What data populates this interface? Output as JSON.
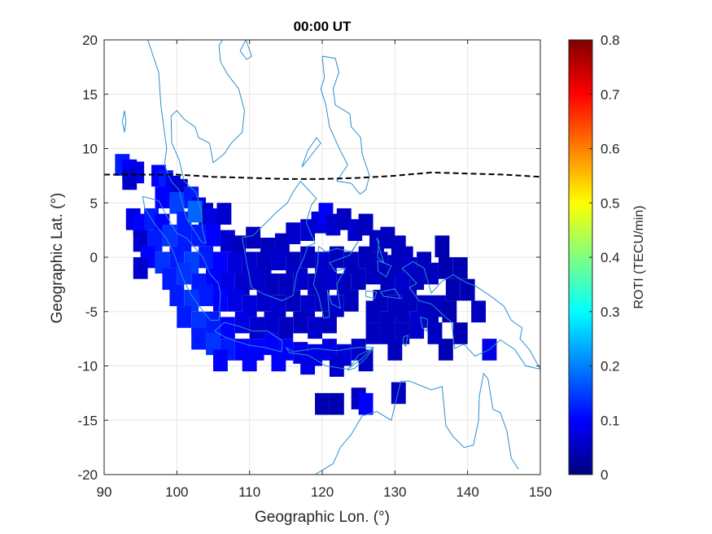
{
  "chart_data": {
    "type": "heatmap",
    "title": "00:00 UT",
    "xlabel": "Geographic Lon. (°)",
    "ylabel": "Geographic Lat. (°)",
    "colorbar_label": "ROTI (TECU/min)",
    "colormap": "jet",
    "xlim": [
      90,
      150
    ],
    "ylim": [
      -20,
      20
    ],
    "clim": [
      0,
      0.8
    ],
    "x_ticks": [
      "90",
      "100",
      "110",
      "120",
      "130",
      "140",
      "150"
    ],
    "y_ticks": [
      "20",
      "15",
      "10",
      "5",
      "0",
      "-5",
      "-10",
      "-15",
      "-20"
    ],
    "colorbar_ticks": [
      "0.8",
      "0.7",
      "0.6",
      "0.5",
      "0.4",
      "0.3",
      "0.2",
      "0.1",
      "0"
    ],
    "grid": true,
    "colors": {
      "coastline": "#2a8fd0",
      "equator_line": "#000000",
      "axes": "#262626",
      "grid": "#e6e6e6"
    },
    "magnetic_equator": {
      "style": "dashed",
      "lon": [
        90,
        95,
        100,
        105,
        110,
        115,
        120,
        125,
        130,
        135,
        140,
        145,
        150
      ],
      "lat": [
        7.6,
        7.6,
        7.6,
        7.4,
        7.3,
        7.2,
        7.2,
        7.3,
        7.5,
        7.8,
        7.7,
        7.6,
        7.4
      ]
    },
    "roti_cells": [
      [
        92.5,
        8.5,
        0.12
      ],
      [
        93.5,
        8.0,
        0.1
      ],
      [
        94.5,
        7.8,
        0.08
      ],
      [
        93.5,
        7.2,
        0.06
      ],
      [
        97.5,
        7.5,
        0.1
      ],
      [
        98.5,
        7.0,
        0.12
      ],
      [
        99.5,
        6.5,
        0.08
      ],
      [
        100.5,
        6.2,
        0.06
      ],
      [
        98,
        5.5,
        0.1
      ],
      [
        100,
        5.0,
        0.15
      ],
      [
        102,
        5.5,
        0.12
      ],
      [
        103,
        4.5,
        0.08
      ],
      [
        104,
        4.0,
        0.06
      ],
      [
        94,
        3.5,
        0.08
      ],
      [
        95,
        3.0,
        0.1
      ],
      [
        96.5,
        3.5,
        0.12
      ],
      [
        98,
        3.0,
        0.1
      ],
      [
        101,
        3.2,
        0.12
      ],
      [
        102.5,
        4.2,
        0.18
      ],
      [
        105,
        3.5,
        0.08
      ],
      [
        106.5,
        4.0,
        0.06
      ],
      [
        95,
        1.5,
        0.06
      ],
      [
        97,
        1.5,
        0.12
      ],
      [
        99,
        2.0,
        0.14
      ],
      [
        101,
        1.5,
        0.12
      ],
      [
        103,
        2.0,
        0.12
      ],
      [
        105,
        2.0,
        0.1
      ],
      [
        107,
        1.5,
        0.06
      ],
      [
        108.5,
        1.0,
        0.05
      ],
      [
        110.5,
        1.8,
        0.05
      ],
      [
        112.5,
        0.8,
        0.05
      ],
      [
        114.5,
        1.2,
        0.05
      ],
      [
        116,
        2.2,
        0.06
      ],
      [
        118,
        2.5,
        0.06
      ],
      [
        119.5,
        3.2,
        0.07
      ],
      [
        120.5,
        4.0,
        0.1
      ],
      [
        121.5,
        3.0,
        0.06
      ],
      [
        123,
        3.5,
        0.05
      ],
      [
        124.5,
        2.5,
        0.06
      ],
      [
        126,
        3.0,
        0.05
      ],
      [
        127.5,
        1.5,
        0.05
      ],
      [
        129,
        1.8,
        0.05
      ],
      [
        130.5,
        1.0,
        0.05
      ],
      [
        131.5,
        0.0,
        0.05
      ],
      [
        96,
        0.0,
        0.1
      ],
      [
        98,
        -0.5,
        0.14
      ],
      [
        100,
        0.0,
        0.12
      ],
      [
        102,
        -0.5,
        0.15
      ],
      [
        104,
        0.0,
        0.12
      ],
      [
        106,
        -0.5,
        0.1
      ],
      [
        108,
        -0.5,
        0.07
      ],
      [
        110,
        -0.5,
        0.06
      ],
      [
        112,
        -0.5,
        0.05
      ],
      [
        114,
        -0.2,
        0.06
      ],
      [
        116,
        -0.5,
        0.05
      ],
      [
        118,
        0.0,
        0.05
      ],
      [
        120,
        -0.5,
        0.06
      ],
      [
        122,
        0.0,
        0.05
      ],
      [
        124,
        -0.5,
        0.05
      ],
      [
        126,
        0.0,
        0.05
      ],
      [
        128,
        -0.5,
        0.05
      ],
      [
        130,
        -0.8,
        0.05
      ],
      [
        132,
        -1.0,
        0.06
      ],
      [
        134,
        -0.5,
        0.05
      ],
      [
        136.5,
        1.0,
        0.04
      ],
      [
        95,
        -1.0,
        0.06
      ],
      [
        99,
        -2.0,
        0.12
      ],
      [
        101,
        -1.5,
        0.14
      ],
      [
        103,
        -2.5,
        0.12
      ],
      [
        105,
        -2.0,
        0.1
      ],
      [
        107,
        -2.5,
        0.08
      ],
      [
        109,
        -2.5,
        0.06
      ],
      [
        111,
        -2.0,
        0.06
      ],
      [
        113,
        -2.5,
        0.05
      ],
      [
        115,
        -2.5,
        0.05
      ],
      [
        117,
        -2.0,
        0.06
      ],
      [
        119,
        -2.5,
        0.05
      ],
      [
        121,
        -2.0,
        0.06
      ],
      [
        123,
        -2.5,
        0.05
      ],
      [
        125,
        -2.0,
        0.05
      ],
      [
        127,
        -1.5,
        0.05
      ],
      [
        129,
        -2.5,
        0.05
      ],
      [
        131,
        -2.5,
        0.06
      ],
      [
        133,
        -2.0,
        0.05
      ],
      [
        135,
        -1.5,
        0.05
      ],
      [
        137,
        -1.0,
        0.04
      ],
      [
        139,
        -1.0,
        0.04
      ],
      [
        100,
        -3.5,
        0.12
      ],
      [
        102,
        -4.0,
        0.14
      ],
      [
        104,
        -3.5,
        0.12
      ],
      [
        106,
        -4.0,
        0.1
      ],
      [
        108,
        -4.0,
        0.08
      ],
      [
        110,
        -4.5,
        0.07
      ],
      [
        112,
        -4.0,
        0.06
      ],
      [
        114,
        -4.5,
        0.06
      ],
      [
        116,
        -4.0,
        0.05
      ],
      [
        118,
        -4.5,
        0.06
      ],
      [
        120,
        -4.0,
        0.05
      ],
      [
        122,
        -4.5,
        0.06
      ],
      [
        124,
        -4.0,
        0.05
      ],
      [
        128,
        -4.0,
        0.05
      ],
      [
        130,
        -4.5,
        0.05
      ],
      [
        132,
        -4.0,
        0.05
      ],
      [
        134,
        -4.5,
        0.05
      ],
      [
        136,
        -4.5,
        0.05
      ],
      [
        138,
        -3.0,
        0.04
      ],
      [
        140,
        -3.0,
        0.04
      ],
      [
        101,
        -5.5,
        0.12
      ],
      [
        103,
        -6.0,
        0.14
      ],
      [
        105,
        -6.0,
        0.12
      ],
      [
        107,
        -6.5,
        0.1
      ],
      [
        109,
        -6.0,
        0.08
      ],
      [
        111,
        -6.5,
        0.06
      ],
      [
        113,
        -6.0,
        0.06
      ],
      [
        115,
        -6.5,
        0.05
      ],
      [
        117,
        -6.0,
        0.05
      ],
      [
        119,
        -6.5,
        0.06
      ],
      [
        121,
        -6.0,
        0.05
      ],
      [
        127,
        -5.0,
        0.05
      ],
      [
        129,
        -6.0,
        0.05
      ],
      [
        131,
        -5.0,
        0.05
      ],
      [
        133,
        -6.0,
        0.06
      ],
      [
        135,
        -5.5,
        0.05
      ],
      [
        137.5,
        -5.0,
        0.04
      ],
      [
        141.5,
        -5.0,
        0.05
      ],
      [
        103,
        -7.5,
        0.12
      ],
      [
        105,
        -8.0,
        0.14
      ],
      [
        107,
        -8.5,
        0.12
      ],
      [
        109,
        -8.5,
        0.1
      ],
      [
        111,
        -8.5,
        0.1
      ],
      [
        113,
        -8.0,
        0.1
      ],
      [
        115,
        -8.5,
        0.1
      ],
      [
        117,
        -8.8,
        0.08
      ],
      [
        119,
        -9.0,
        0.08
      ],
      [
        121,
        -8.5,
        0.08
      ],
      [
        123,
        -9.0,
        0.07
      ],
      [
        125,
        -8.5,
        0.06
      ],
      [
        127,
        -7.0,
        0.05
      ],
      [
        129,
        -7.0,
        0.05
      ],
      [
        131,
        -7.0,
        0.05
      ],
      [
        133,
        -6.5,
        0.06
      ],
      [
        135.5,
        -7.0,
        0.05
      ],
      [
        139,
        -7.0,
        0.04
      ],
      [
        106,
        -9.5,
        0.1
      ],
      [
        110,
        -9.5,
        0.1
      ],
      [
        114,
        -9.5,
        0.1
      ],
      [
        118,
        -9.8,
        0.08
      ],
      [
        122,
        -10.0,
        0.06
      ],
      [
        126,
        -9.5,
        0.05
      ],
      [
        130,
        -8.5,
        0.05
      ],
      [
        137,
        -8.5,
        0.04
      ],
      [
        143,
        -8.5,
        0.08
      ],
      [
        120,
        -13.5,
        0.04
      ],
      [
        122,
        -13.5,
        0.04
      ],
      [
        125,
        -13.0,
        0.05
      ],
      [
        126,
        -13.5,
        0.1
      ],
      [
        130.5,
        -12.5,
        0.05
      ]
    ]
  }
}
